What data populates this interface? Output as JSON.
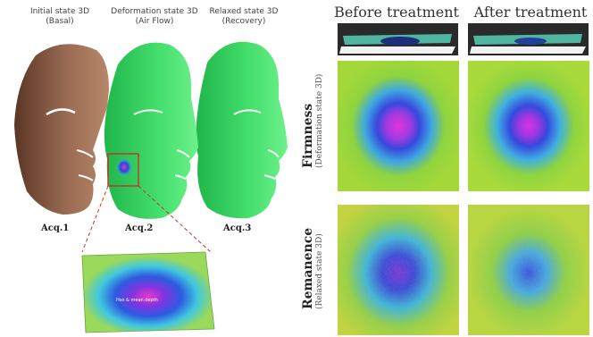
{
  "faces": {
    "acq1": {
      "title": "Initial state 3D",
      "subtitle": "(Basal)",
      "label": "Acq.1"
    },
    "acq2": {
      "title": "Deformation state 3D",
      "subtitle": "(Air Flow)",
      "label": "Acq.2"
    },
    "acq3": {
      "title": "Relaxed state 3D",
      "subtitle": "(Recovery)",
      "label": "Acq.3"
    }
  },
  "zoom": {
    "text_a": "Has & mean depth"
  },
  "grid": {
    "before_label": "Before treatment",
    "after_label": "After treatment",
    "firmness_label": "Firmness",
    "firmness_sub": "(Deformation state 3D)",
    "remanence_label": "Remanence",
    "remanence_sub": "(Relaxed state 3D)"
  },
  "colors": {
    "face_green": "#3ee06a",
    "skin": "#8a5a40",
    "map_bg": "#8fd43e",
    "map_blue": "#3a5be0",
    "map_magenta": "#d933e6",
    "highlight_red": "#c9302c"
  }
}
